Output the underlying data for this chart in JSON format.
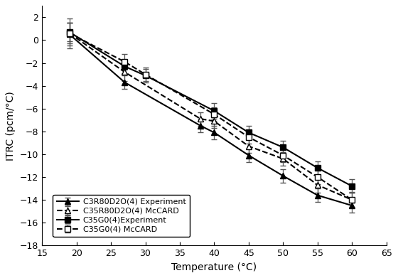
{
  "title": "",
  "xlabel": "Temperature (°C)",
  "ylabel": "ITRC (pcm/°C)",
  "xlim": [
    15,
    65
  ],
  "ylim": [
    -18,
    3
  ],
  "xticks": [
    15,
    20,
    25,
    30,
    35,
    40,
    45,
    50,
    55,
    60,
    65
  ],
  "yticks": [
    -18,
    -16,
    -14,
    -12,
    -10,
    -8,
    -6,
    -4,
    -2,
    0,
    2
  ],
  "series": [
    {
      "key": "C3R80D2O4_exp",
      "x": [
        19,
        27,
        38,
        40,
        45,
        50,
        55,
        60
      ],
      "y": [
        0.5,
        -3.7,
        -7.5,
        -8.1,
        -10.1,
        -11.9,
        -13.6,
        -14.5
      ],
      "yerr": [
        1.0,
        0.6,
        0.6,
        0.6,
        0.6,
        0.6,
        0.6,
        0.6
      ],
      "label": "C3R80D2O(4) Experiment",
      "linestyle": "-",
      "marker": "^",
      "markerfacecolor": "#000000"
    },
    {
      "key": "C35R80D2O4_mccard",
      "x": [
        19,
        27,
        38,
        40,
        45,
        50,
        55,
        60
      ],
      "y": [
        0.6,
        -2.8,
        -6.9,
        -7.1,
        -9.3,
        -10.4,
        -12.7,
        -14.0
      ],
      "yerr": [
        1.3,
        0.8,
        0.6,
        0.6,
        0.6,
        0.6,
        0.7,
        0.7
      ],
      "label": "C35R80D2O(4) McCARD",
      "linestyle": "--",
      "marker": "^",
      "markerfacecolor": "#ffffff"
    },
    {
      "key": "C35G04_exp",
      "x": [
        19,
        27,
        30,
        40,
        45,
        50,
        55,
        60
      ],
      "y": [
        0.7,
        -2.3,
        -3.1,
        -6.2,
        -8.1,
        -9.4,
        -11.2,
        -12.8
      ],
      "yerr": [
        0.8,
        0.6,
        0.6,
        0.7,
        0.6,
        0.6,
        0.6,
        0.6
      ],
      "label": "C35G0(4)Experiment",
      "linestyle": "-",
      "marker": "s",
      "markerfacecolor": "#000000"
    },
    {
      "key": "C35G04_mccard",
      "x": [
        19,
        27,
        30,
        40,
        45,
        50,
        55,
        60
      ],
      "y": [
        0.6,
        -1.9,
        -3.0,
        -6.5,
        -8.5,
        -10.1,
        -12.0,
        -14.0
      ],
      "yerr": [
        0.9,
        0.7,
        0.6,
        0.6,
        0.6,
        0.6,
        0.6,
        0.6
      ],
      "label": "C35G0(4) McCARD",
      "linestyle": "--",
      "marker": "s",
      "markerfacecolor": "#ffffff"
    }
  ]
}
